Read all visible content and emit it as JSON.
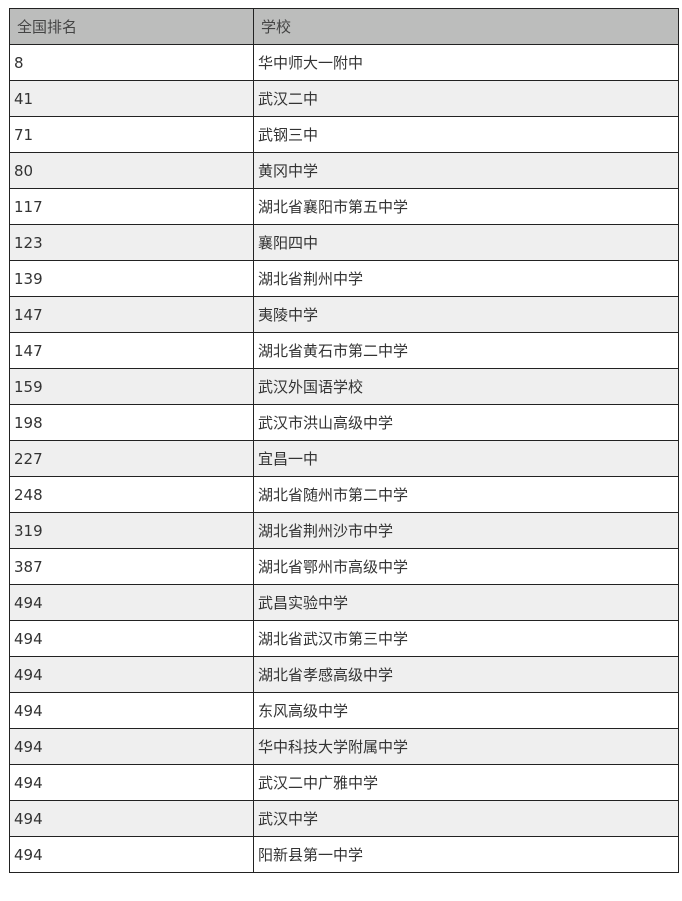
{
  "table": {
    "headers": [
      "全国排名",
      "学校"
    ],
    "rows": [
      [
        "8",
        "华中师大一附中"
      ],
      [
        "41",
        "武汉二中"
      ],
      [
        "71",
        "武钢三中"
      ],
      [
        "80",
        "黄冈中学"
      ],
      [
        "117",
        "湖北省襄阳市第五中学"
      ],
      [
        "123",
        "襄阳四中"
      ],
      [
        "139",
        "湖北省荆州中学"
      ],
      [
        "147",
        "夷陵中学"
      ],
      [
        "147",
        "湖北省黄石市第二中学"
      ],
      [
        "159",
        "武汉外国语学校"
      ],
      [
        "198",
        "武汉市洪山高级中学"
      ],
      [
        "227",
        "宜昌一中"
      ],
      [
        "248",
        "湖北省随州市第二中学"
      ],
      [
        "319",
        "湖北省荆州沙市中学"
      ],
      [
        "387",
        "湖北省鄂州市高级中学"
      ],
      [
        "494",
        "武昌实验中学"
      ],
      [
        "494",
        "湖北省武汉市第三中学"
      ],
      [
        "494",
        "湖北省孝感高级中学"
      ],
      [
        "494",
        "东风高级中学"
      ],
      [
        "494",
        "华中科技大学附属中学"
      ],
      [
        "494",
        "武汉二中广雅中学"
      ],
      [
        "494",
        "武汉中学"
      ],
      [
        "494",
        "阳新县第一中学"
      ]
    ]
  },
  "colors": {
    "header_bg": "#bcbdbc",
    "alt_row_bg": "#efefef",
    "border": "#222222"
  }
}
